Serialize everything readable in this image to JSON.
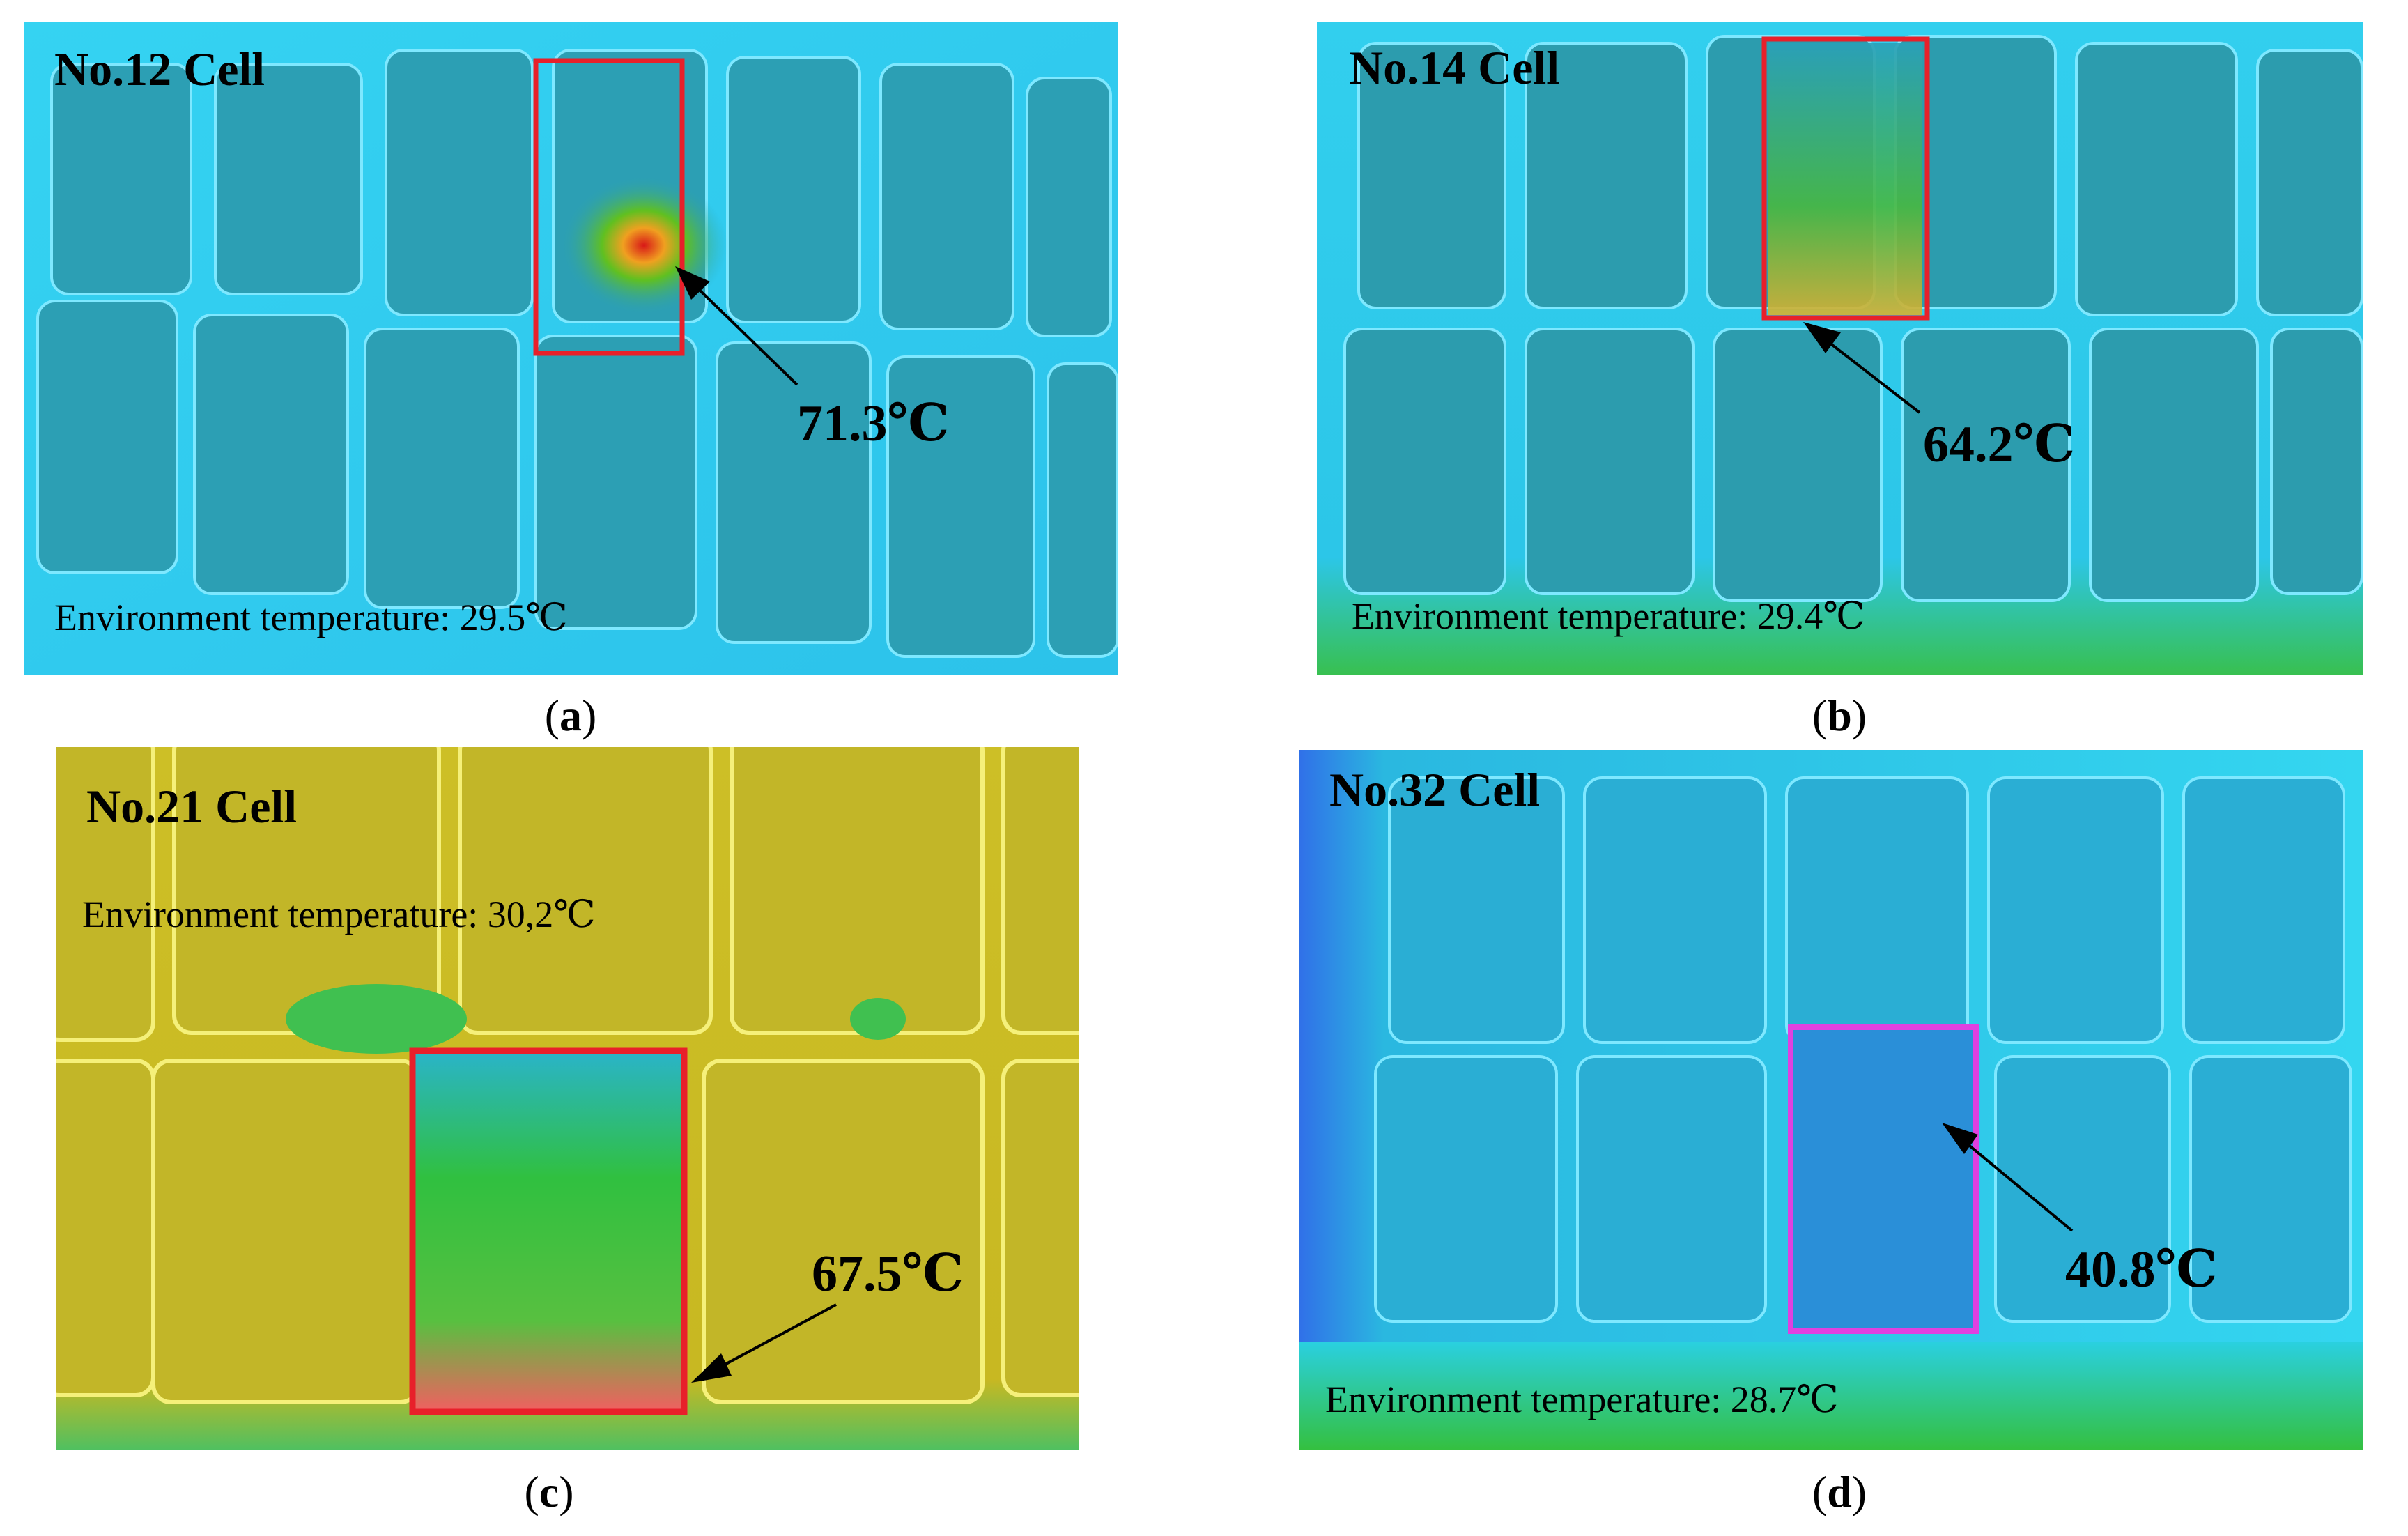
{
  "panels": [
    {
      "id": "a",
      "cell_label": "No.12 Cell",
      "hotspot_temp": "71.3℃",
      "env_temp": "Environment temperature: 29.5℃",
      "caption_letter": "a"
    },
    {
      "id": "b",
      "cell_label": "No.14 Cell",
      "hotspot_temp": "64.2℃",
      "env_temp": "Environment temperature: 29.4℃",
      "caption_letter": "b"
    },
    {
      "id": "c",
      "cell_label": "No.21 Cell",
      "hotspot_temp": "67.5℃",
      "env_temp": "Environment temperature: 30,2℃",
      "caption_letter": "c"
    },
    {
      "id": "d",
      "cell_label": "No.32 Cell",
      "hotspot_temp": "40.8℃",
      "env_temp": "Environment temperature: 28.7℃",
      "caption_letter": "d"
    }
  ],
  "colors": {
    "highlight_red": "#e8202a",
    "highlight_magenta": "#e040e0",
    "thermal_cyan": "#2fd0f0",
    "thermal_teal": "#2aa0b8",
    "thermal_yellow": "#c8c020",
    "thermal_green": "#30c040"
  }
}
